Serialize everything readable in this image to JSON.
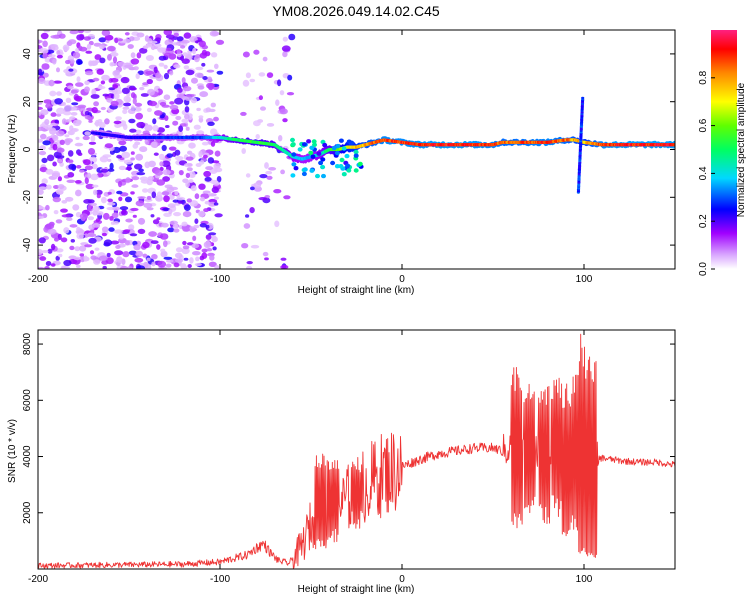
{
  "title": "YM08.2026.049.14.02.C45",
  "chart_data": [
    {
      "type": "heatmap",
      "name": "spectrogram",
      "xlabel": "Height of straight line (km)",
      "ylabel": "Frequency (Hz)",
      "xlim": [
        -200,
        150
      ],
      "ylim": [
        -50,
        50
      ],
      "xticks": [
        -200,
        -100,
        0,
        100
      ],
      "yticks": [
        -40,
        -20,
        0,
        20,
        40
      ],
      "colorbar": {
        "label": "Normalized spectral amplitude",
        "range": [
          0,
          1
        ],
        "ticks": [
          0.0,
          0.2,
          0.4,
          0.6,
          0.8
        ],
        "tick_labels": [
          "0.0",
          "0.2",
          "0.4",
          "0.6",
          "0.8"
        ],
        "colors": [
          "#ffffff",
          "#b000ff",
          "#0000ff",
          "#00e0ff",
          "#00ff00",
          "#ffff00",
          "#ff9900",
          "#ff0000"
        ]
      },
      "ridge": {
        "x": [
          -170,
          -160,
          -150,
          -130,
          -110,
          -100,
          -90,
          -80,
          -70,
          -60,
          -55,
          -50,
          -45,
          -40,
          -35,
          -30,
          -25,
          -20,
          -15,
          -10,
          0,
          10,
          20,
          30,
          40,
          50,
          55,
          60,
          70,
          80,
          90,
          95,
          100,
          110,
          120,
          130,
          150
        ],
        "y": [
          7,
          6,
          5,
          5,
          5,
          5,
          4,
          3,
          2,
          -3,
          -4,
          -3,
          -2,
          0,
          0,
          1,
          1,
          2,
          3,
          4,
          3,
          2,
          2,
          2,
          2,
          2,
          3,
          3,
          3,
          3,
          4,
          4,
          3,
          2,
          2,
          2,
          2
        ],
        "intensity": [
          0.25,
          0.25,
          0.25,
          0.3,
          0.3,
          0.45,
          0.55,
          0.6,
          0.55,
          0.45,
          0.4,
          0.4,
          0.45,
          0.55,
          0.65,
          0.75,
          0.8,
          0.85,
          0.9,
          0.95,
          0.95,
          0.97,
          0.98,
          0.98,
          0.97,
          0.95,
          0.9,
          0.9,
          0.92,
          0.95,
          0.9,
          0.85,
          0.8,
          0.95,
          0.98,
          0.98,
          0.98
        ]
      },
      "noise_region_x": [
        -200,
        -60
      ]
    },
    {
      "type": "line",
      "name": "snr",
      "xlabel": "Height of straight line (km)",
      "ylabel": "SNR (10 * v/v)",
      "xlim": [
        -200,
        150
      ],
      "ylim": [
        0,
        8500
      ],
      "xticks": [
        -200,
        -100,
        0,
        100
      ],
      "yticks": [
        2000,
        4000,
        6000,
        8000
      ],
      "color": "#ee3333",
      "x": [
        -200,
        -150,
        -120,
        -100,
        -85,
        -80,
        -76,
        -72,
        -68,
        -62,
        -55,
        -50,
        -45,
        -40,
        -35,
        -30,
        -25,
        -20,
        -15,
        -10,
        -5,
        0,
        10,
        20,
        30,
        40,
        50,
        55,
        60,
        65,
        70,
        75,
        80,
        85,
        90,
        95,
        98,
        100,
        102,
        104,
        106,
        110,
        120,
        130,
        140,
        150
      ],
      "y": [
        120,
        150,
        170,
        250,
        500,
        750,
        900,
        550,
        300,
        200,
        800,
        1600,
        1900,
        2000,
        2200,
        2500,
        2800,
        3000,
        3200,
        3400,
        3500,
        3650,
        3900,
        4100,
        4200,
        4300,
        4300,
        4200,
        4300,
        4300,
        4200,
        4200,
        4100,
        4100,
        4100,
        4200,
        4000,
        3800,
        3700,
        3900,
        3900,
        3950,
        3850,
        3800,
        3800,
        3700
      ],
      "spikes": [
        {
          "x": -45,
          "peak": 4200,
          "low": 900
        },
        {
          "x": -38,
          "peak": 3900,
          "low": 1200
        },
        {
          "x": -25,
          "peak": 4000,
          "low": 1800
        },
        {
          "x": 63,
          "peak": 7300,
          "low": 1700
        },
        {
          "x": 70,
          "peak": 6600,
          "low": 2300
        },
        {
          "x": 78,
          "peak": 6500,
          "low": 2000
        },
        {
          "x": 85,
          "peak": 6800,
          "low": 2200
        },
        {
          "x": 91,
          "peak": 6700,
          "low": 1200
        },
        {
          "x": 96,
          "peak": 7000,
          "low": 1600
        },
        {
          "x": 100,
          "peak": 8400,
          "low": 700
        },
        {
          "x": 104,
          "peak": 7800,
          "low": 500
        }
      ]
    }
  ]
}
